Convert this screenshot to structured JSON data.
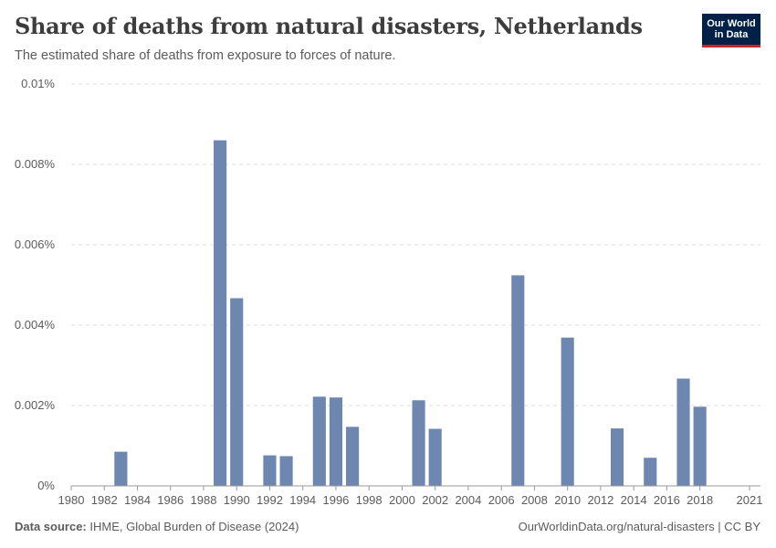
{
  "header": {
    "title": "Share of deaths from natural disasters, Netherlands",
    "subtitle": "The estimated share of deaths from exposure to forces of nature."
  },
  "logo": {
    "line1": "Our World",
    "line2": "in Data"
  },
  "footer": {
    "source_label": "Data source:",
    "source_text": "IHME, Global Burden of Disease (2024)",
    "link": "OurWorldinData.org/natural-disasters",
    "separator": " | ",
    "license": "CC BY"
  },
  "colors": {
    "bar": "#6d87b0",
    "grid": "#dddddd",
    "axis": "#999999",
    "text": "#5b5b5b",
    "brand": "#002147",
    "brand_accent": "#ce261e"
  },
  "chart_data": {
    "type": "bar",
    "title": "Share of deaths from natural disasters, Netherlands",
    "xlabel": "",
    "ylabel": "",
    "xlim": [
      1980,
      2021
    ],
    "ylim": [
      0,
      0.01
    ],
    "y_ticks": [
      0,
      0.002,
      0.004,
      0.006,
      0.008,
      0.01
    ],
    "y_tick_labels": [
      "0%",
      "0.002%",
      "0.004%",
      "0.006%",
      "0.008%",
      "0.01%"
    ],
    "x_ticks": [
      1980,
      1982,
      1984,
      1986,
      1988,
      1990,
      1992,
      1994,
      1996,
      1998,
      2000,
      2002,
      2004,
      2006,
      2008,
      2010,
      2012,
      2014,
      2016,
      2018,
      2021
    ],
    "x_tick_labels": [
      "1980",
      "1982",
      "1984",
      "1986",
      "1988",
      "1990",
      "1992",
      "1994",
      "1996",
      "1998",
      "2000",
      "2002",
      "2004",
      "2006",
      "2008",
      "2010",
      "2012",
      "2014",
      "2016",
      "2018",
      "2021"
    ],
    "grid": true,
    "series": [
      {
        "name": "Netherlands",
        "unit": "%",
        "points": [
          {
            "year": 1983,
            "value": 0.00085
          },
          {
            "year": 1989,
            "value": 0.0086
          },
          {
            "year": 1990,
            "value": 0.00467
          },
          {
            "year": 1992,
            "value": 0.00076
          },
          {
            "year": 1993,
            "value": 0.00074
          },
          {
            "year": 1995,
            "value": 0.00222
          },
          {
            "year": 1996,
            "value": 0.0022
          },
          {
            "year": 1997,
            "value": 0.00147
          },
          {
            "year": 2001,
            "value": 0.00213
          },
          {
            "year": 2002,
            "value": 0.00142
          },
          {
            "year": 2007,
            "value": 0.00524
          },
          {
            "year": 2010,
            "value": 0.00369
          },
          {
            "year": 2013,
            "value": 0.00143
          },
          {
            "year": 2015,
            "value": 0.0007
          },
          {
            "year": 2017,
            "value": 0.00267
          },
          {
            "year": 2018,
            "value": 0.00197
          }
        ]
      }
    ]
  }
}
